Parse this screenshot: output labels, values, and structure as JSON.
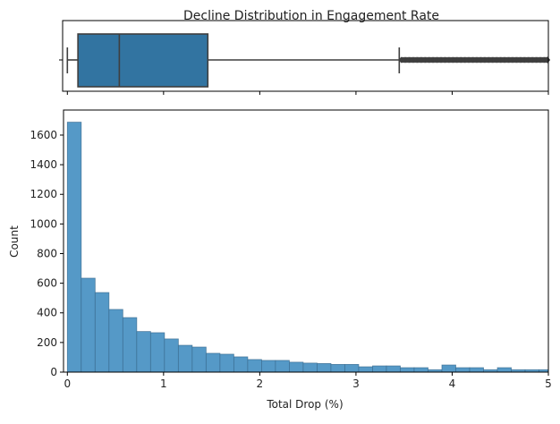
{
  "chart_data": [
    {
      "type": "box",
      "title": "Decline Distribution in Engagement Rate",
      "whisker_low": 0.0,
      "q1": 0.11,
      "median": 0.54,
      "q3": 1.46,
      "whisker_high": 3.45,
      "outlier_range": [
        3.47,
        5.0
      ],
      "xlim": [
        -0.04,
        5
      ],
      "box_color": "#3274a1",
      "line_color": "#3f3f3f"
    },
    {
      "type": "bar",
      "title": "",
      "xlabel": "Total Drop (%)",
      "ylabel": "Count",
      "bin_start": 0,
      "bin_width": 0.1442,
      "values": [
        1687,
        634,
        537,
        423,
        368,
        274,
        266,
        224,
        181,
        169,
        127,
        121,
        103,
        85,
        79,
        79,
        67,
        61,
        58,
        52,
        52,
        36,
        42,
        42,
        30,
        30,
        16,
        48,
        30,
        30,
        16,
        30,
        16,
        16,
        16,
        16
      ],
      "xlim": [
        -0.04,
        5
      ],
      "ylim": [
        0,
        1769
      ],
      "xticks": [
        "0",
        "1",
        "2",
        "3",
        "4",
        "5"
      ],
      "yticks": [
        "0",
        "200",
        "400",
        "600",
        "800",
        "1000",
        "1200",
        "1400",
        "1600"
      ],
      "bar_color": "#5599c7",
      "grid": false
    }
  ]
}
